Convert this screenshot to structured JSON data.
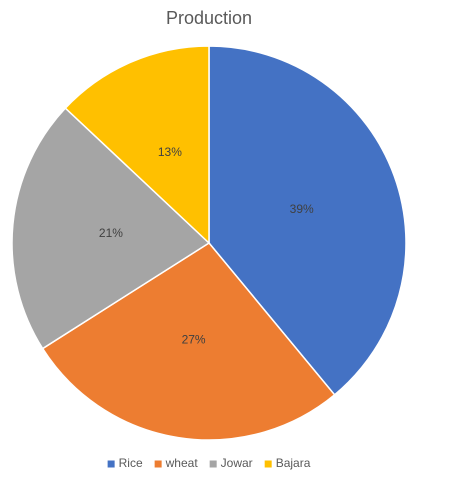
{
  "chart_data": {
    "type": "pie",
    "title": "Production",
    "categories": [
      "Rice",
      "wheat",
      "Jowar",
      "Bajara"
    ],
    "values": [
      39,
      27,
      21,
      13
    ],
    "value_labels": [
      "39%",
      "27%",
      "21%",
      "13%"
    ],
    "colors": [
      "#4472c4",
      "#ed7d31",
      "#a5a5a5",
      "#ffc000"
    ],
    "legend": "bottom"
  }
}
